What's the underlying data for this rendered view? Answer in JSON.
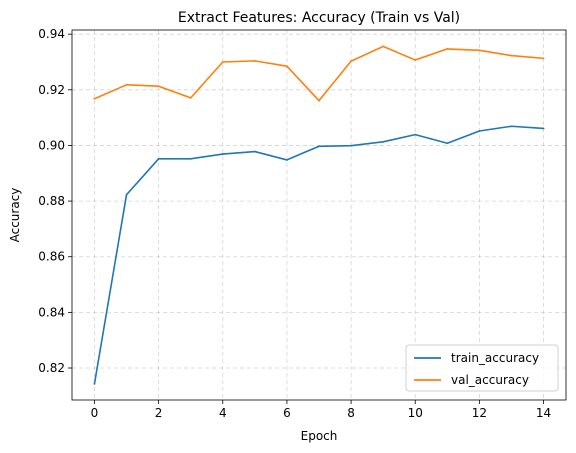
{
  "chart_data": {
    "type": "line",
    "title": "Extract Features: Accuracy (Train vs Val)",
    "xlabel": "Epoch",
    "ylabel": "Accuracy",
    "xlim": [
      -0.7,
      14.7
    ],
    "ylim": [
      0.8085,
      0.9415
    ],
    "xticks": [
      0,
      2,
      4,
      6,
      8,
      10,
      12,
      14
    ],
    "yticks": [
      0.82,
      0.84,
      0.86,
      0.88,
      0.9,
      0.92,
      0.94
    ],
    "ytick_labels": [
      "0.82",
      "0.84",
      "0.86",
      "0.88",
      "0.90",
      "0.92",
      "0.94"
    ],
    "grid": true,
    "legend_position": "lower-right",
    "x": [
      0,
      1,
      2,
      3,
      4,
      5,
      6,
      7,
      8,
      9,
      10,
      11,
      12,
      13,
      14
    ],
    "series": [
      {
        "name": "train_accuracy",
        "color": "#1f77b4",
        "values": [
          0.8143,
          0.8823,
          0.8952,
          0.8952,
          0.8969,
          0.8978,
          0.8948,
          0.8997,
          0.8999,
          0.9013,
          0.9039,
          0.9008,
          0.9052,
          0.9069,
          0.9061
        ]
      },
      {
        "name": "val_accuracy",
        "color": "#ff7f0e",
        "values": [
          0.9168,
          0.9218,
          0.9213,
          0.9171,
          0.93,
          0.9304,
          0.9285,
          0.9161,
          0.9303,
          0.9356,
          0.9307,
          0.9347,
          0.9342,
          0.9323,
          0.9313
        ]
      }
    ]
  }
}
